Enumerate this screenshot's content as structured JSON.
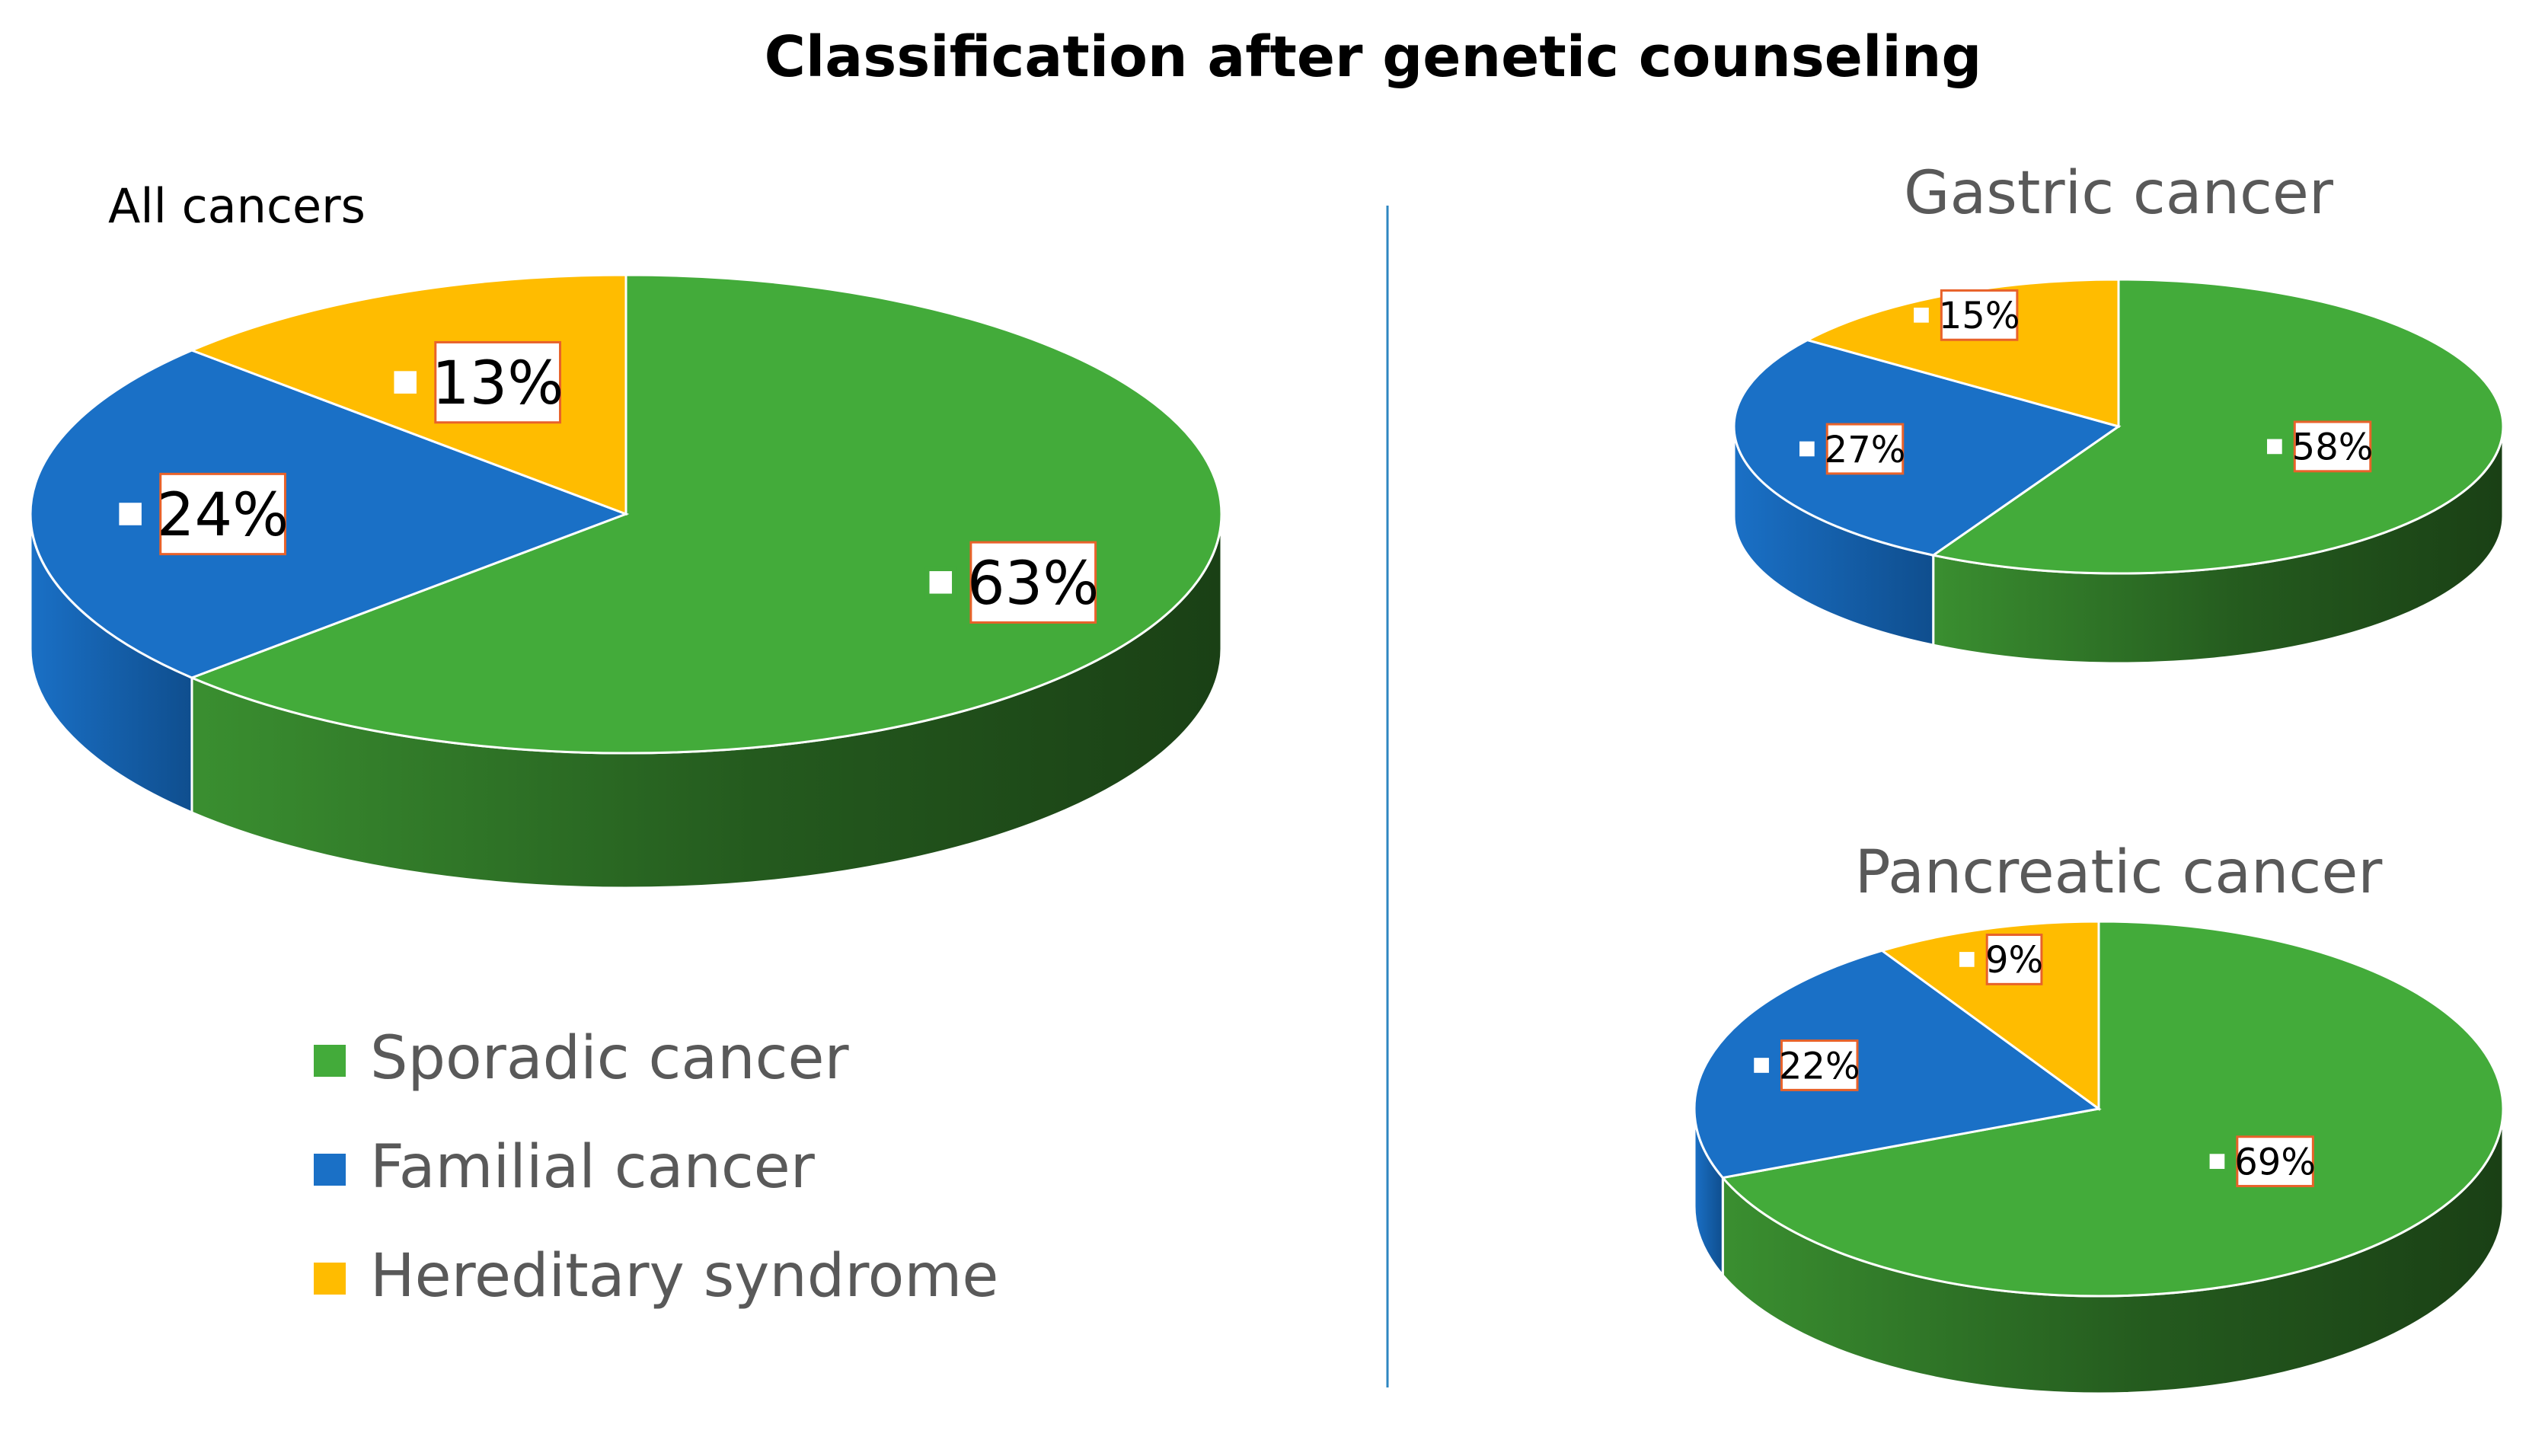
{
  "title": "Classification after genetic counseling",
  "legend": {
    "items": [
      {
        "label": "Sporadic cancer",
        "color": "#43AB3A"
      },
      {
        "label": "Familial cancer",
        "color": "#1A70C6"
      },
      {
        "label": "Hereditary syndrome",
        "color": "#FFBC00"
      }
    ]
  },
  "colors": {
    "sporadic_top": "#43AB3A",
    "familial_top": "#1A70C6",
    "hereditary_top": "#FFBC00",
    "sporadic_side_dark": "#1A4015",
    "sporadic_side_light": "#3A8F30",
    "familial_side_dark": "#0F4E8E",
    "familial_side_light": "#1A70C6",
    "label_border": "#E8622A",
    "divider": "#2E86C1"
  },
  "chart_data": [
    {
      "type": "pie",
      "title": "All cancers",
      "categories": [
        "Sporadic cancer",
        "Familial cancer",
        "Hereditary syndrome"
      ],
      "values": [
        63,
        24,
        13
      ],
      "labels": [
        "63%",
        "24%",
        "13%"
      ]
    },
    {
      "type": "pie",
      "title": "Gastric cancer",
      "categories": [
        "Sporadic cancer",
        "Familial cancer",
        "Hereditary syndrome"
      ],
      "values": [
        58,
        27,
        15
      ],
      "labels": [
        "58%",
        "27%",
        "15%"
      ]
    },
    {
      "type": "pie",
      "title": "Pancreatic cancer",
      "categories": [
        "Sporadic cancer",
        "Familial cancer",
        "Hereditary syndrome"
      ],
      "values": [
        69,
        22,
        9
      ],
      "labels": [
        "69%",
        "22%",
        "9%"
      ]
    }
  ]
}
